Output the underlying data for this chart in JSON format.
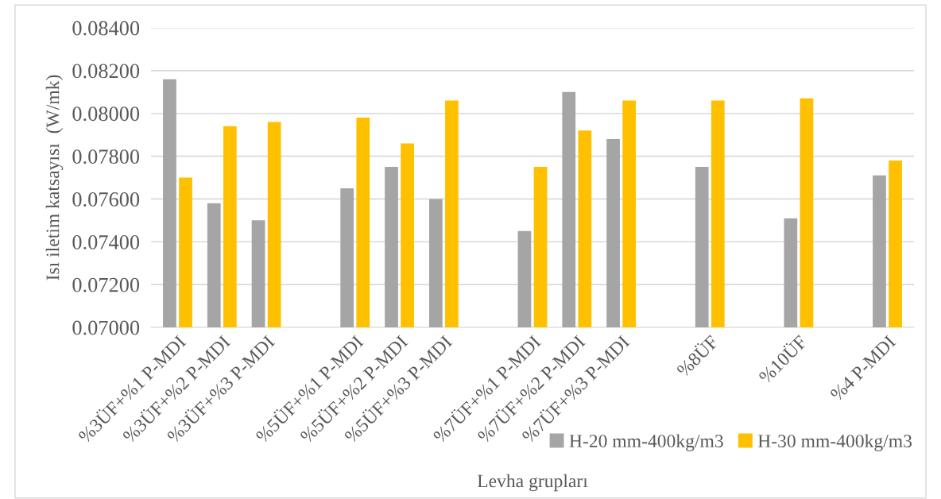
{
  "chart_data": {
    "type": "bar",
    "xlabel": "Levha grupları",
    "ylabel": "Isı iletim katsayısı  (W/mk)",
    "categories": [
      "%3ÜF+%1 P-MDI",
      "%3ÜF+%2 P-MDI",
      "%3ÜF+%3 P-MDI",
      null,
      "%5ÜF+%1 P-MDI",
      "%5ÜF+%2 P-MDI",
      "%5ÜF+%3 P-MDI",
      null,
      "%7ÜF+%1 P-MDI",
      "%7ÜF+%2 P-MDI",
      "%7ÜF+%3 P-MDI",
      null,
      "%8ÜF",
      null,
      "%10ÜF",
      null,
      "%4 P-MDI"
    ],
    "series": [
      {
        "name": "H-20 mm-400kg/m3",
        "color": "#a5a5a5",
        "values": [
          0.0816,
          0.0758,
          0.075,
          null,
          0.0765,
          0.0775,
          0.076,
          null,
          0.0745,
          0.081,
          0.0788,
          null,
          0.0775,
          null,
          0.0751,
          null,
          0.0771
        ]
      },
      {
        "name": "H-30 mm-400kg/m3",
        "color": "#ffc000",
        "values": [
          0.077,
          0.0794,
          0.0796,
          null,
          0.0798,
          0.0786,
          0.0806,
          null,
          0.0775,
          0.0792,
          0.0806,
          null,
          0.0806,
          null,
          0.0807,
          null,
          0.0778
        ]
      }
    ],
    "ylim": [
      0.07,
      0.084
    ],
    "yticks": [
      {
        "value": 0.07,
        "label": "0.07000"
      },
      {
        "value": 0.072,
        "label": "0.07200"
      },
      {
        "value": 0.074,
        "label": "0.07400"
      },
      {
        "value": 0.076,
        "label": "0.07600"
      },
      {
        "value": 0.078,
        "label": "0.07800"
      },
      {
        "value": 0.08,
        "label": "0.08000"
      },
      {
        "value": 0.082,
        "label": "0.08200"
      },
      {
        "value": 0.084,
        "label": "0.08400"
      }
    ],
    "grid": "y",
    "legend": "bottom right"
  }
}
